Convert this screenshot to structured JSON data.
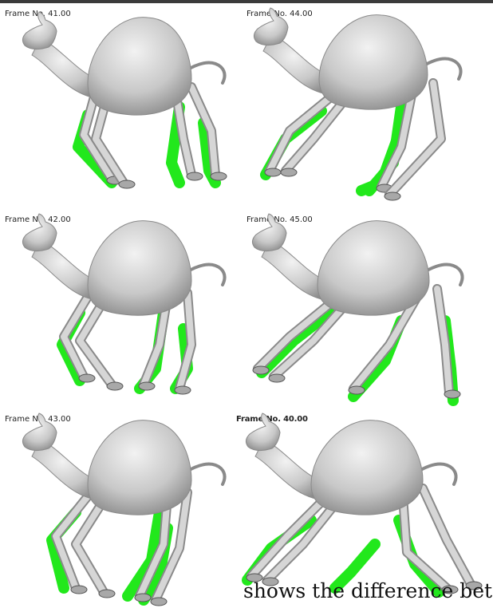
{
  "frames": [
    {
      "label": "Frame No. 41.00"
    },
    {
      "label": "Frame No. 44.00"
    },
    {
      "label": "Frame No. 42.00"
    },
    {
      "label": "Frame No. 45.00"
    },
    {
      "label": "Frame No. 43.00"
    },
    {
      "label": "Frame No. 40.00"
    }
  ],
  "caption": {
    "text": "shows the difference bet"
  },
  "colors": {
    "camel_fill": "#c8c8c8",
    "camel_stroke": "#8a8a8a",
    "ghost_fill": "#22e81c",
    "background": "#ffffff"
  }
}
